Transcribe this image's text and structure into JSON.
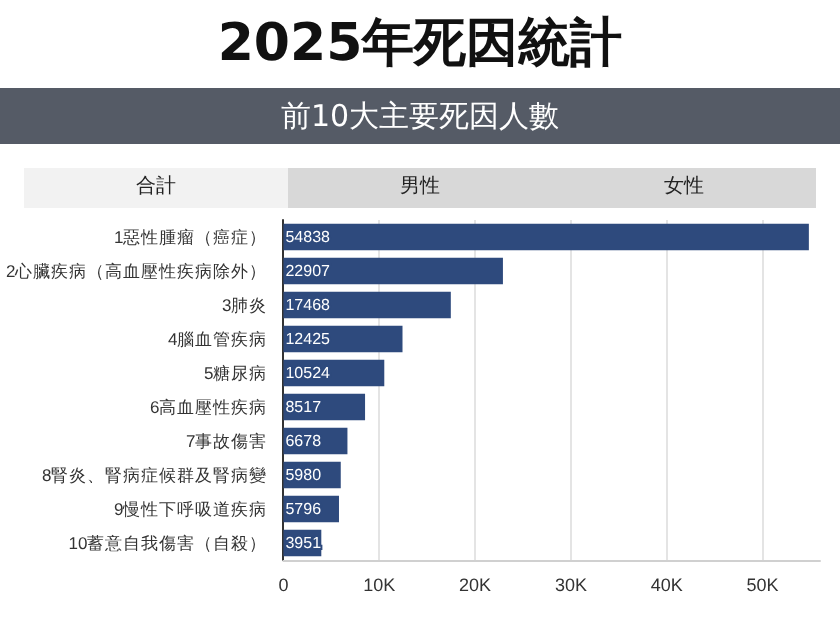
{
  "chart_data": {
    "type": "bar",
    "orientation": "horizontal",
    "title": "2025年死因統計",
    "subtitle": "前10大主要死因人數",
    "annotations": [
      "合計",
      "男性",
      "女性"
    ],
    "categories": [
      "1惡性腫瘤（癌症）",
      "2心臟疾病（高血壓性疾病除外）",
      "3肺炎",
      "4腦血管疾病",
      "5糖尿病",
      "6高血壓性疾病",
      "7事故傷害",
      "8腎炎、腎病症候群及腎病變",
      "9慢性下呼吸道疾病",
      "10蓄意自我傷害（自殺）"
    ],
    "values": [
      54838,
      22907,
      17468,
      12425,
      10524,
      8517,
      6678,
      5980,
      5796,
      3951
    ],
    "color": "#2e4a7d",
    "data_labels": true,
    "grid": "x",
    "xlim": [
      0,
      56000
    ],
    "xticks": [
      0,
      {
        "value": 10000,
        "label": "10K"
      },
      {
        "value": 20000,
        "label": "20K"
      },
      {
        "value": 30000,
        "label": "30K"
      },
      {
        "value": 40000,
        "label": "40K"
      },
      {
        "value": 50000,
        "label": "50K"
      }
    ]
  }
}
